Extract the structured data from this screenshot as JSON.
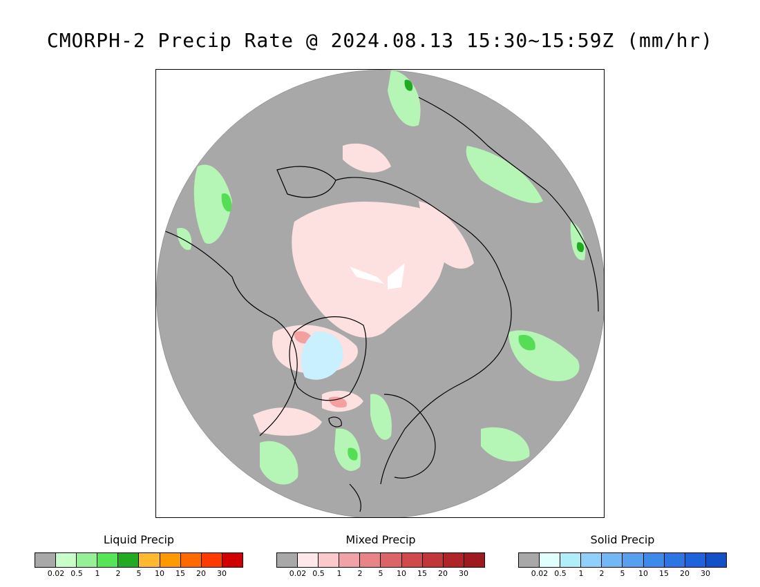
{
  "title": "CMORPH-2 Precip Rate @ 2024.08.13 15:30~15:59Z (mm/hr)",
  "map": {
    "projection": "north polar stereographic",
    "background_color": "#a8a8a8",
    "regions": [
      {
        "name": "liquid-precip-area",
        "color": "#b5f5b5"
      },
      {
        "name": "liquid-precip-moderate",
        "color": "#55dd55"
      },
      {
        "name": "liquid-precip-heavy",
        "color": "#22aa22"
      },
      {
        "name": "mixed-precip-area",
        "color": "#fde0e0"
      },
      {
        "name": "mixed-precip-moderate",
        "color": "#f5a0a0"
      },
      {
        "name": "solid-precip-area",
        "color": "#c8f0ff"
      },
      {
        "name": "no-data-area",
        "color": "#ffffff"
      }
    ]
  },
  "legends": [
    {
      "title": "Liquid Precip",
      "colors": [
        "#a8a8a8",
        "#c8ffc8",
        "#96f096",
        "#55e555",
        "#22aa22",
        "#ffb830",
        "#ff9900",
        "#ff6a00",
        "#ff3a00",
        "#d00000"
      ],
      "ticks": [
        "0.02",
        "0.5",
        "1",
        "2",
        "5",
        "10",
        "15",
        "20",
        "30"
      ]
    },
    {
      "title": "Mixed Precip",
      "colors": [
        "#a8a8a8",
        "#ffe8ea",
        "#fbc8cc",
        "#f0a2a6",
        "#e88486",
        "#dd6466",
        "#d04a4c",
        "#c13638",
        "#b02428",
        "#9e1a1e"
      ],
      "ticks": [
        "0.02",
        "0.5",
        "1",
        "2",
        "5",
        "10",
        "15",
        "20",
        "30"
      ]
    },
    {
      "title": "Solid Precip",
      "colors": [
        "#a8a8a8",
        "#e0ffff",
        "#b0eefa",
        "#90d0fa",
        "#72b8f4",
        "#56a0ee",
        "#3e8aea",
        "#2c76e4",
        "#1e62dc",
        "#1250c8"
      ],
      "ticks": [
        "0.02",
        "0.5",
        "1",
        "2",
        "5",
        "10",
        "15",
        "20",
        "30"
      ]
    }
  ]
}
